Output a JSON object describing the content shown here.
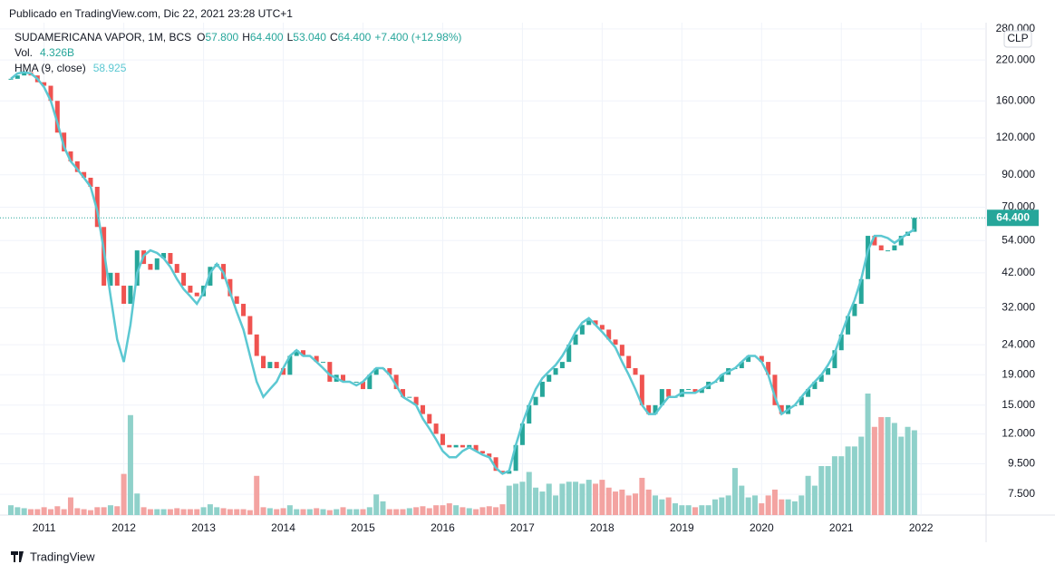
{
  "header": {
    "published": "Publicado en TradingView.com, Dic 22, 2021 23:28 UTC+1"
  },
  "legend": {
    "symbol": "SUDAMERICANA VAPOR, 1M, BCS",
    "o_label": "O",
    "o": "57.800",
    "h_label": "H",
    "h": "64.400",
    "l_label": "L",
    "l": "53.040",
    "c_label": "C",
    "c": "64.400",
    "change": "+7.400 (+12.98%)",
    "vol_label": "Vol.",
    "vol": "4.326B",
    "hma_label": "HMA (9, close)",
    "hma": "58.925"
  },
  "footer": {
    "brand": "TradingView"
  },
  "chart_data": {
    "type": "candlestick",
    "log_scale": true,
    "currency": "CLP",
    "ylim": [
      6.38,
      294
    ],
    "yticks": [
      {
        "value": 7.5,
        "label": "7.500"
      },
      {
        "value": 9.5,
        "label": "9.500"
      },
      {
        "value": 12,
        "label": "12.000"
      },
      {
        "value": 15,
        "label": "15.000"
      },
      {
        "value": 19,
        "label": "19.000"
      },
      {
        "value": 24,
        "label": "24.000"
      },
      {
        "value": 32,
        "label": "32.000"
      },
      {
        "value": 42,
        "label": "42.000"
      },
      {
        "value": 54,
        "label": "54.000"
      },
      {
        "value": 70,
        "label": "70.000"
      },
      {
        "value": 90,
        "label": "90.000"
      },
      {
        "value": 120,
        "label": "120.000"
      },
      {
        "value": 160,
        "label": "160.000"
      },
      {
        "value": 220,
        "label": "220.000"
      },
      {
        "value": 280,
        "label": "280.000"
      }
    ],
    "xticks": [
      {
        "value": 5,
        "label": "2011"
      },
      {
        "value": 17,
        "label": "2012"
      },
      {
        "value": 29,
        "label": "2013"
      },
      {
        "value": 41,
        "label": "2014"
      },
      {
        "value": 53,
        "label": "2015"
      },
      {
        "value": 65,
        "label": "2016"
      },
      {
        "value": 77,
        "label": "2017"
      },
      {
        "value": 89,
        "label": "2018"
      },
      {
        "value": 101,
        "label": "2019"
      },
      {
        "value": 113,
        "label": "2020"
      },
      {
        "value": 125,
        "label": "2021"
      },
      {
        "value": 137,
        "label": "2022"
      }
    ],
    "last_price": {
      "value": 64.4,
      "label": "64.400"
    },
    "up_color": "#26a69a",
    "down_color": "#ef5350",
    "up_volume_color": "#8fd1ca",
    "down_volume_color": "#f3a3a1",
    "series": [
      {
        "name": "close",
        "values": [
          190,
          195,
          200,
          195,
          185,
          180,
          160,
          125,
          108,
          100,
          92,
          88,
          82,
          60,
          38,
          42,
          38,
          33,
          38,
          50,
          45,
          43,
          47,
          49,
          45,
          42,
          38,
          36,
          35,
          38,
          44,
          45,
          40,
          35,
          33,
          30,
          26,
          22,
          20,
          21,
          20,
          19,
          22,
          23,
          22,
          22,
          21,
          21,
          18,
          19,
          18,
          18,
          18,
          17,
          19,
          20,
          20,
          19,
          17,
          16,
          16,
          15,
          14,
          13,
          12,
          11,
          10.8,
          11,
          10.8,
          11,
          10.5,
          10.3,
          10,
          9,
          8.8,
          9,
          11,
          13,
          15,
          16,
          18,
          19,
          20,
          21,
          24,
          26,
          28,
          29,
          28,
          27,
          25,
          24,
          22,
          20,
          19,
          15,
          14,
          15,
          17,
          16,
          16,
          17,
          17,
          16.5,
          17,
          18,
          18,
          19,
          20,
          20,
          21,
          22,
          22,
          21,
          19,
          15,
          14,
          15,
          15,
          16,
          17,
          18,
          19,
          20,
          23,
          26,
          30,
          33,
          40,
          56,
          52,
          50,
          50,
          52,
          56,
          57.8,
          64.4
        ]
      },
      {
        "name": "HMA (9, close)",
        "color": "#5cc8d2",
        "values": [
          190,
          198,
          200,
          198,
          190,
          178,
          160,
          135,
          112,
          100,
          94,
          88,
          82,
          68,
          50,
          35,
          25,
          21,
          28,
          42,
          48,
          50,
          49,
          47,
          44,
          40,
          37,
          35,
          33,
          36,
          42,
          45,
          42,
          36,
          31,
          27,
          22,
          18,
          16,
          17,
          18,
          20,
          22,
          23,
          22,
          22,
          21,
          20,
          19,
          18.5,
          18,
          18,
          17.5,
          18,
          19,
          20,
          20,
          19,
          17.5,
          16,
          15.5,
          15,
          13.5,
          12.5,
          11.5,
          10.5,
          10,
          10,
          10.5,
          10.8,
          10.5,
          10.2,
          10,
          9.2,
          8.8,
          9,
          11,
          13,
          15,
          17,
          18.5,
          19.5,
          20.5,
          22,
          24,
          26.5,
          28.5,
          29.5,
          28,
          26.5,
          25,
          23.5,
          21,
          19,
          17,
          15,
          14,
          14,
          15,
          16,
          16,
          16.5,
          16.5,
          16.5,
          17,
          17.5,
          18,
          19,
          19.5,
          20,
          21,
          22,
          22,
          21,
          19,
          16,
          14,
          14.5,
          15,
          16,
          17,
          18,
          19,
          20.5,
          22.5,
          26,
          30,
          34,
          40,
          50,
          56,
          56,
          55,
          53,
          55,
          57,
          58.925
        ]
      },
      {
        "name": "volume",
        "values": [
          0.5,
          0.4,
          0.35,
          0.3,
          0.3,
          0.4,
          0.3,
          0.45,
          0.3,
          0.9,
          0.35,
          0.3,
          0.25,
          0.4,
          0.4,
          0.5,
          0.45,
          2.1,
          5.1,
          1.1,
          0.4,
          0.3,
          0.3,
          0.3,
          0.3,
          0.35,
          0.3,
          0.3,
          0.3,
          0.4,
          0.55,
          0.4,
          0.35,
          0.3,
          0.3,
          0.3,
          0.25,
          2.0,
          0.4,
          0.35,
          0.3,
          0.35,
          0.5,
          0.3,
          0.3,
          0.3,
          0.35,
          0.3,
          0.25,
          0.3,
          0.4,
          0.3,
          0.3,
          0.3,
          0.4,
          1.05,
          0.7,
          0.3,
          0.3,
          0.3,
          0.35,
          0.4,
          0.45,
          0.35,
          0.5,
          0.5,
          0.6,
          0.5,
          0.4,
          0.35,
          0.3,
          0.4,
          0.45,
          0.4,
          0.55,
          1.5,
          1.6,
          1.7,
          2.2,
          1.4,
          1.2,
          1.6,
          1.0,
          1.6,
          1.7,
          1.7,
          1.6,
          1.8,
          1.6,
          1.8,
          1.4,
          1.2,
          1.3,
          1.0,
          1.1,
          1.9,
          1.3,
          1.0,
          0.8,
          0.9,
          0.6,
          0.5,
          0.5,
          0.4,
          0.5,
          0.5,
          0.8,
          0.9,
          1.0,
          2.4,
          1.5,
          0.9,
          1.0,
          0.6,
          1.0,
          1.3,
          0.8,
          0.8,
          0.7,
          1.0,
          2.0,
          1.5,
          2.5,
          2.5,
          3.0,
          3.0,
          3.5,
          3.5,
          4.0,
          6.2,
          4.5,
          5.0,
          5.0,
          4.7,
          4.0,
          4.5,
          4.326
        ]
      }
    ]
  }
}
